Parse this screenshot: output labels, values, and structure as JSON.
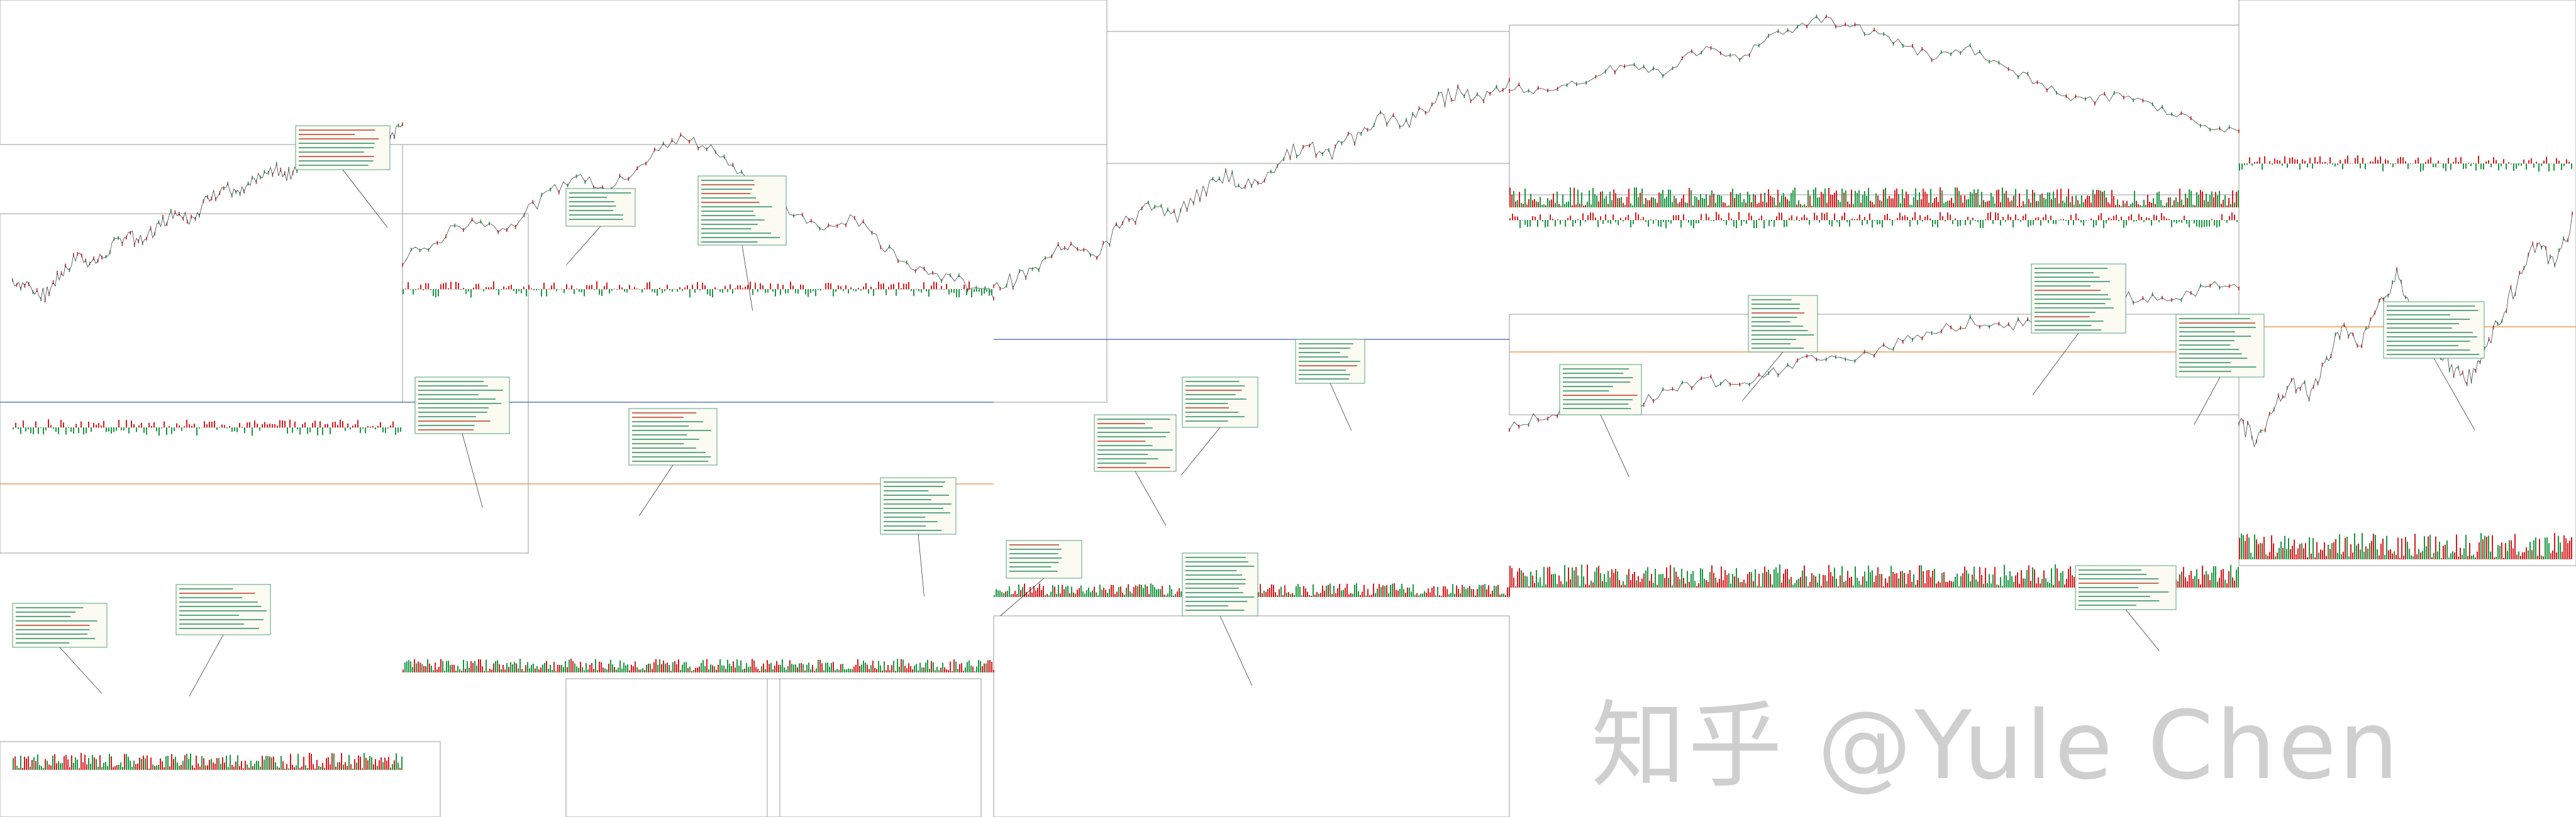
{
  "watermark": "知乎 @Yule Chen",
  "colors": {
    "up": "#1a9641",
    "down": "#d7191c",
    "annotation": "#2a8a6a",
    "annotation_red": "#c0392b",
    "line_blue": "#3a5fb0",
    "line_orange": "#e58a2a",
    "frame": "#9a9a9a",
    "text": "#333333"
  },
  "chart_data": {
    "type": "line",
    "title": "",
    "xlabel": "",
    "ylabel": "",
    "series": [
      {
        "values": [
          40,
          38,
          35,
          42,
          48,
          45,
          50,
          55,
          52,
          58,
          62,
          60,
          66,
          70,
          68,
          72,
          76,
          74,
          79,
          82,
          80,
          84,
          88,
          86,
          90
        ]
      },
      {
        "values": [
          62,
          66,
          70,
          68,
          74,
          79,
          76,
          82,
          86,
          84,
          78,
          72,
          68,
          70,
          64,
          60,
          58,
          55
        ]
      },
      {
        "values": [
          30,
          34,
          38,
          45,
          42,
          50,
          56,
          52,
          60,
          66,
          62,
          70,
          75,
          72,
          78,
          84,
          82,
          88,
          92,
          90,
          95
        ]
      },
      {
        "values": [
          50,
          48,
          52,
          56,
          54,
          60,
          58,
          64,
          68,
          66,
          62,
          58,
          60,
          55,
          50,
          46,
          48,
          44,
          40,
          38
        ]
      },
      {
        "values": [
          22,
          28,
          34,
          30,
          38,
          44,
          40,
          48,
          55,
          52,
          60,
          66,
          70,
          68,
          74,
          78,
          82,
          80,
          85,
          88
        ]
      },
      {
        "values": [
          45,
          42,
          48,
          52,
          50,
          56,
          62,
          58,
          66,
          70,
          64,
          60,
          55,
          52,
          58,
          64,
          70,
          76,
          72,
          80
        ]
      }
    ]
  }
}
